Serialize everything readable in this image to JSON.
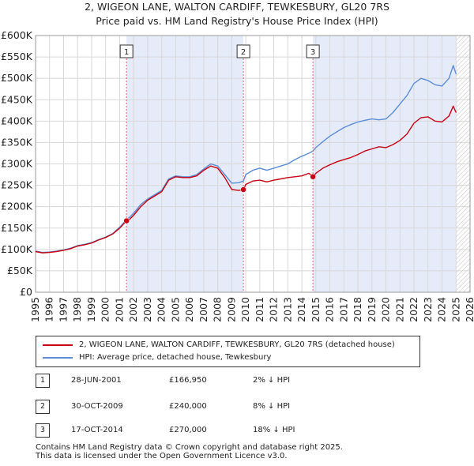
{
  "chart_data": {
    "type": "line",
    "title": "2, WIGEON LANE, WALTON CARDIFF, TEWKESBURY, GL20 7RS",
    "subtitle": "Price paid vs. HM Land Registry's House Price Index (HPI)",
    "xlabel": "",
    "ylabel": "",
    "xlim": [
      1995,
      2026
    ],
    "ylim": [
      0,
      600000
    ],
    "x_ticks": [
      "1995",
      "1996",
      "1997",
      "1998",
      "1999",
      "2000",
      "2001",
      "2002",
      "2003",
      "2004",
      "2005",
      "2006",
      "2007",
      "2008",
      "2009",
      "2010",
      "2011",
      "2012",
      "2013",
      "2014",
      "2015",
      "2016",
      "2017",
      "2018",
      "2019",
      "2020",
      "2021",
      "2022",
      "2023",
      "2024",
      "2025",
      "2026"
    ],
    "y_ticks": [
      {
        "value": 0,
        "label": "£0"
      },
      {
        "value": 50000,
        "label": "£50K"
      },
      {
        "value": 100000,
        "label": "£100K"
      },
      {
        "value": 150000,
        "label": "£150K"
      },
      {
        "value": 200000,
        "label": "£200K"
      },
      {
        "value": 250000,
        "label": "£250K"
      },
      {
        "value": 300000,
        "label": "£300K"
      },
      {
        "value": 350000,
        "label": "£350K"
      },
      {
        "value": 400000,
        "label": "£400K"
      },
      {
        "value": 450000,
        "label": "£450K"
      },
      {
        "value": 500000,
        "label": "£500K"
      },
      {
        "value": 550000,
        "label": "£550K"
      },
      {
        "value": 600000,
        "label": "£600K"
      }
    ],
    "grid": true,
    "shaded_spans": [
      {
        "from": 2001.49,
        "to": 2009.83
      },
      {
        "from": 2014.79,
        "to": 2025.0
      }
    ],
    "hatched_from": 2025.0,
    "series": [
      {
        "name": "2, WIGEON LANE, WALTON CARDIFF, TEWKESBURY, GL20 7RS (detached house)",
        "color": "#c80012",
        "x": [
          1995.0,
          1995.5,
          1996.0,
          1996.5,
          1997.0,
          1997.5,
          1998.0,
          1998.5,
          1999.0,
          1999.5,
          2000.0,
          2000.5,
          2001.0,
          2001.49,
          2001.7,
          2002.0,
          2002.5,
          2003.0,
          2003.5,
          2004.0,
          2004.5,
          2005.0,
          2005.5,
          2006.0,
          2006.5,
          2007.0,
          2007.5,
          2008.0,
          2008.5,
          2009.0,
          2009.5,
          2009.83,
          2010.0,
          2010.5,
          2011.0,
          2011.5,
          2012.0,
          2012.5,
          2013.0,
          2013.5,
          2014.0,
          2014.5,
          2014.79,
          2015.0,
          2015.5,
          2016.0,
          2016.5,
          2017.0,
          2017.5,
          2018.0,
          2018.5,
          2019.0,
          2019.5,
          2020.0,
          2020.5,
          2021.0,
          2021.5,
          2022.0,
          2022.5,
          2023.0,
          2023.5,
          2024.0,
          2024.5,
          2024.8,
          2025.0
        ],
        "values": [
          95000,
          92000,
          93000,
          95000,
          98000,
          102000,
          108000,
          111000,
          115000,
          122000,
          128000,
          136000,
          150000,
          166950,
          170000,
          180000,
          200000,
          215000,
          225000,
          235000,
          262000,
          270000,
          268000,
          268000,
          272000,
          285000,
          295000,
          290000,
          268000,
          240000,
          238000,
          240000,
          252000,
          260000,
          262000,
          258000,
          262000,
          265000,
          268000,
          270000,
          272000,
          278000,
          270000,
          278000,
          290000,
          298000,
          305000,
          310000,
          315000,
          322000,
          330000,
          335000,
          340000,
          338000,
          345000,
          355000,
          370000,
          395000,
          408000,
          410000,
          400000,
          398000,
          412000,
          435000,
          420000
        ]
      },
      {
        "name": "HPI: Average price, detached house, Tewkesbury",
        "color": "#5b8ed6",
        "x": [
          1995.0,
          1995.5,
          1996.0,
          1996.5,
          1997.0,
          1997.5,
          1998.0,
          1998.5,
          1999.0,
          1999.5,
          2000.0,
          2000.5,
          2001.0,
          2001.49,
          2001.7,
          2002.0,
          2002.5,
          2003.0,
          2003.5,
          2004.0,
          2004.5,
          2005.0,
          2005.5,
          2006.0,
          2006.5,
          2007.0,
          2007.5,
          2008.0,
          2008.5,
          2009.0,
          2009.5,
          2009.83,
          2010.0,
          2010.5,
          2011.0,
          2011.5,
          2012.0,
          2012.5,
          2013.0,
          2013.5,
          2014.0,
          2014.5,
          2014.79,
          2015.0,
          2015.5,
          2016.0,
          2016.5,
          2017.0,
          2017.5,
          2018.0,
          2018.5,
          2019.0,
          2019.5,
          2020.0,
          2020.5,
          2021.0,
          2021.5,
          2022.0,
          2022.5,
          2023.0,
          2023.5,
          2024.0,
          2024.5,
          2024.8,
          2025.0
        ],
        "values": [
          96000,
          93000,
          94000,
          96000,
          99000,
          103000,
          109000,
          112000,
          116000,
          123000,
          129000,
          137000,
          152000,
          170000,
          175000,
          185000,
          205000,
          218000,
          228000,
          238000,
          265000,
          272000,
          270000,
          270000,
          275000,
          288000,
          300000,
          295000,
          275000,
          255000,
          256000,
          260000,
          275000,
          285000,
          290000,
          285000,
          290000,
          295000,
          300000,
          310000,
          318000,
          325000,
          330000,
          338000,
          352000,
          365000,
          375000,
          385000,
          392000,
          398000,
          402000,
          405000,
          403000,
          405000,
          420000,
          440000,
          460000,
          488000,
          500000,
          495000,
          485000,
          482000,
          500000,
          530000,
          510000
        ]
      }
    ],
    "sale_markers": [
      {
        "label": "1",
        "x": 2001.49,
        "value": 166950
      },
      {
        "label": "2",
        "x": 2009.83,
        "value": 240000
      },
      {
        "label": "3",
        "x": 2014.79,
        "value": 270000
      }
    ]
  },
  "legend": {
    "property_label": "2, WIGEON LANE, WALTON CARDIFF, TEWKESBURY, GL20 7RS (detached house)",
    "hpi_label": "HPI: Average price, detached house, Tewkesbury",
    "property_color": "#c80012",
    "hpi_color": "#5b8ed6"
  },
  "sales": [
    {
      "num": "1",
      "date": "28-JUN-2001",
      "price": "£166,950",
      "hpi": "2% ↓ HPI"
    },
    {
      "num": "2",
      "date": "30-OCT-2009",
      "price": "£240,000",
      "hpi": "8% ↓ HPI"
    },
    {
      "num": "3",
      "date": "17-OCT-2014",
      "price": "£270,000",
      "hpi": "18% ↓ HPI"
    }
  ],
  "footer": {
    "line1": "Contains HM Land Registry data © Crown copyright and database right 2025.",
    "line2": "This data is licensed under the Open Government Licence v3.0."
  }
}
